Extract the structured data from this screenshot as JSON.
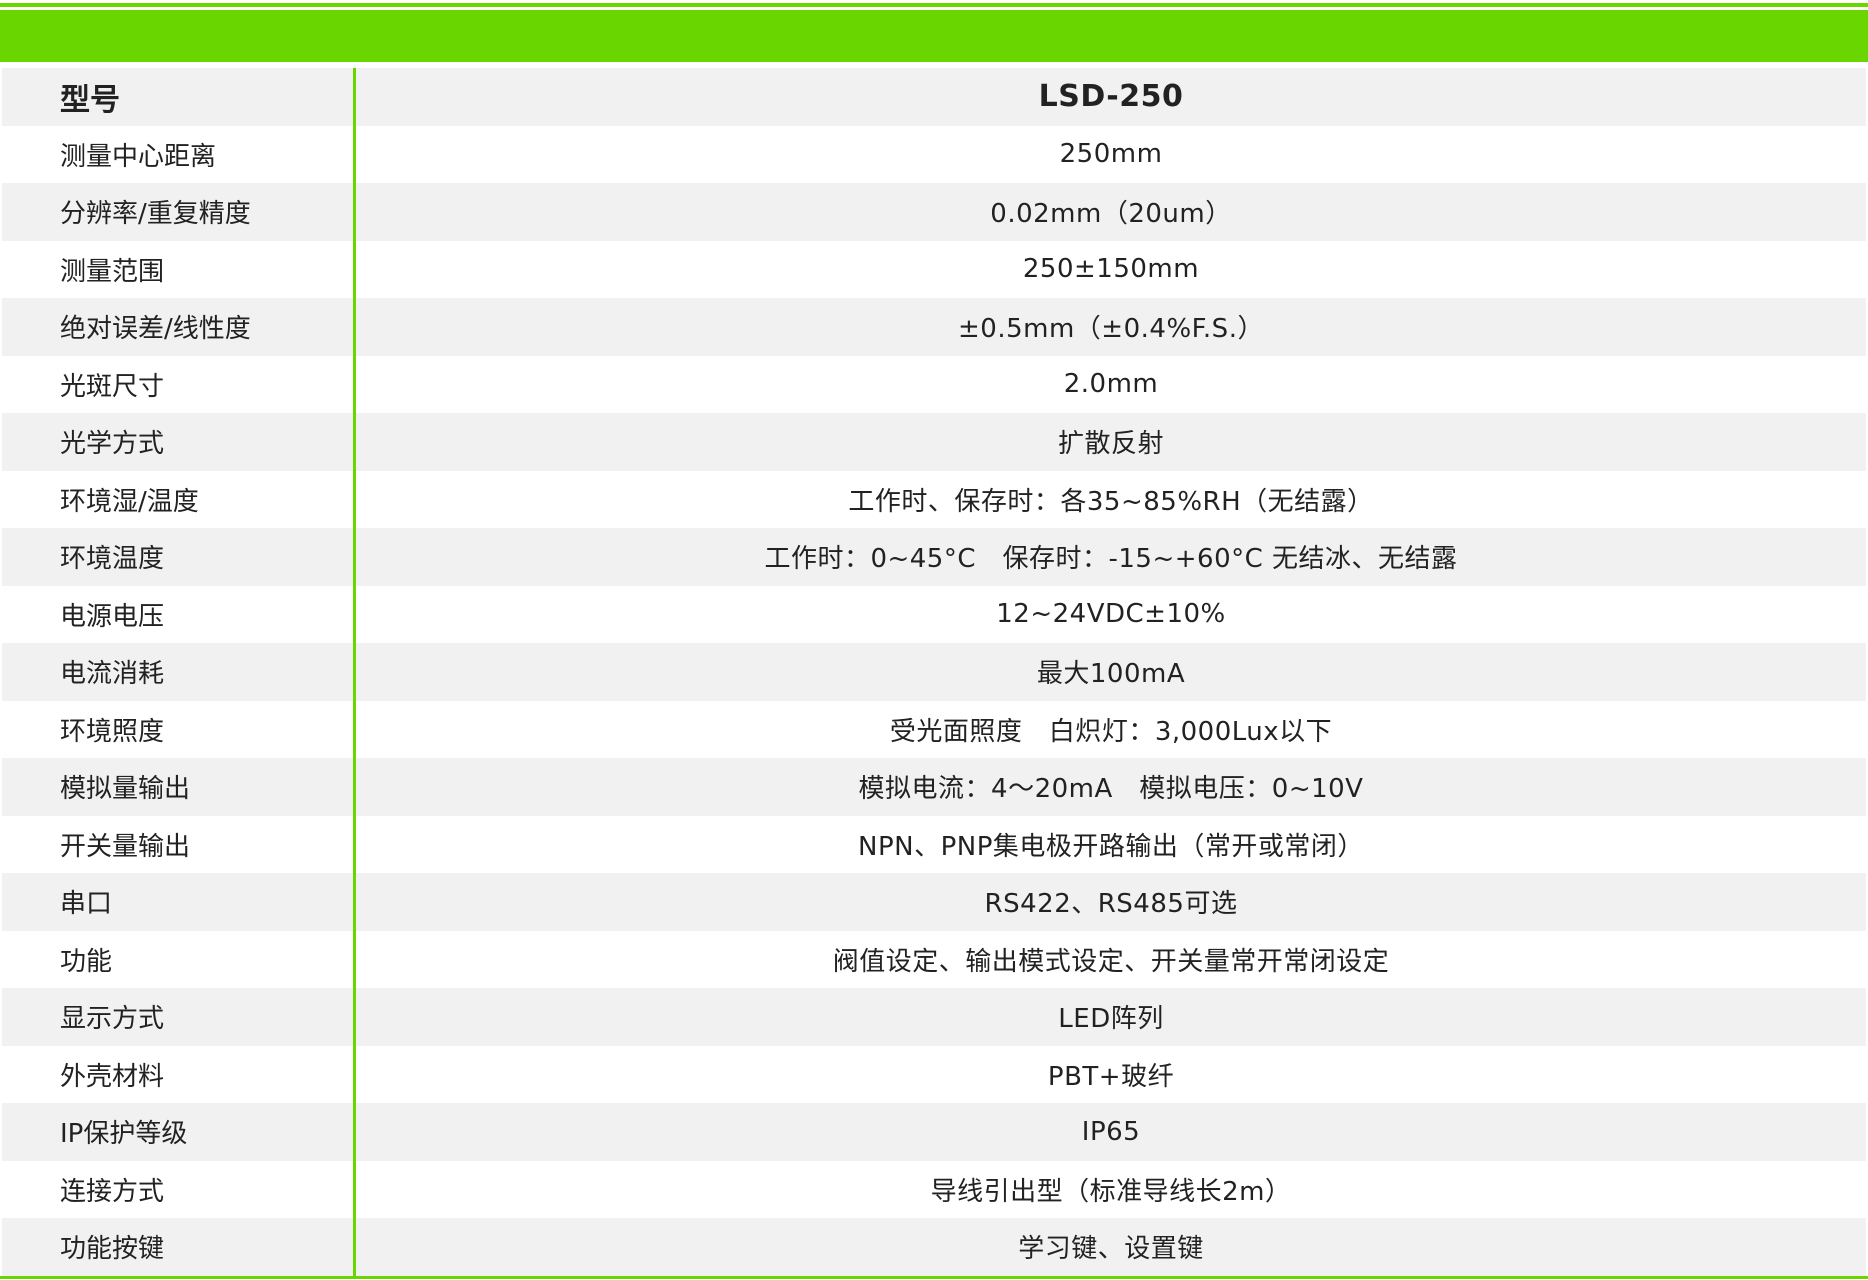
{
  "colors": {
    "accent": "#6ad600",
    "stripe": "#f1f1f1"
  },
  "header": {
    "label": "型号",
    "value": "LSD-250"
  },
  "rows": [
    {
      "label": "测量中心距离",
      "value": "250mm"
    },
    {
      "label": "分辨率/重复精度",
      "value": "0.02mm（20um）"
    },
    {
      "label": "测量范围",
      "value": "250±150mm"
    },
    {
      "label": "绝对误差/线性度",
      "value": "±0.5mm（±0.4%F.S.）"
    },
    {
      "label": "光斑尺寸",
      "value": "2.0mm"
    },
    {
      "label": "光学方式",
      "value": "扩散反射"
    },
    {
      "label": "环境湿/温度",
      "value": "工作时、保存时：各35~85%RH（无结露）"
    },
    {
      "label": "环境温度",
      "value": "工作时：0~45°C　保存时：-15~+60°C 无结冰、无结露"
    },
    {
      "label": "电源电压",
      "value": "12~24VDC±10%"
    },
    {
      "label": "电流消耗",
      "value": "最大100mA"
    },
    {
      "label": "环境照度",
      "value": "受光面照度　白炽灯：3,000Lux以下"
    },
    {
      "label": "模拟量输出",
      "value": "模拟电流：4～20mA　模拟电压：0~10V"
    },
    {
      "label": "开关量输出",
      "value": "NPN、PNP集电极开路输出（常开或常闭）"
    },
    {
      "label": "串口",
      "value": "RS422、RS485可选"
    },
    {
      "label": "功能",
      "value": "阀值设定、输出模式设定、开关量常开常闭设定"
    },
    {
      "label": "显示方式",
      "value": "LED阵列"
    },
    {
      "label": "外壳材料",
      "value": "PBT+玻纤"
    },
    {
      "label": "IP保护等级",
      "value": "IP65"
    },
    {
      "label": "连接方式",
      "value": "导线引出型（标准导线长2m）"
    },
    {
      "label": "功能按键",
      "value": "学习键、设置键"
    }
  ]
}
